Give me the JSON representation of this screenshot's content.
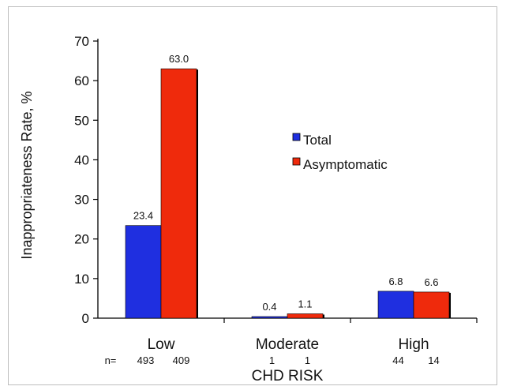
{
  "chart_data": {
    "type": "bar",
    "ylabel": "Inappropriateness Rate, %",
    "xlabel": "CHD RISK",
    "ylim": [
      0,
      70
    ],
    "yticks": [
      0,
      10,
      20,
      30,
      40,
      50,
      60,
      70
    ],
    "categories": [
      "Low",
      "Moderate",
      "High"
    ],
    "n_prefix": "n=",
    "n_counts": [
      [
        "493",
        "409"
      ],
      [
        "1",
        "1"
      ],
      [
        "44",
        "14"
      ]
    ],
    "series": [
      {
        "name": "Total",
        "color": "#1f2fe0",
        "values": [
          23.4,
          0.4,
          6.8
        ],
        "labels": [
          "23.4",
          "0.4",
          "6.8"
        ]
      },
      {
        "name": "Asymptomatic",
        "color": "#ef2a0c",
        "values": [
          63.0,
          1.1,
          6.6
        ],
        "labels": [
          "63.0",
          "1.1",
          "6.6"
        ]
      }
    ],
    "legend_position": "center-right",
    "grid": false
  }
}
